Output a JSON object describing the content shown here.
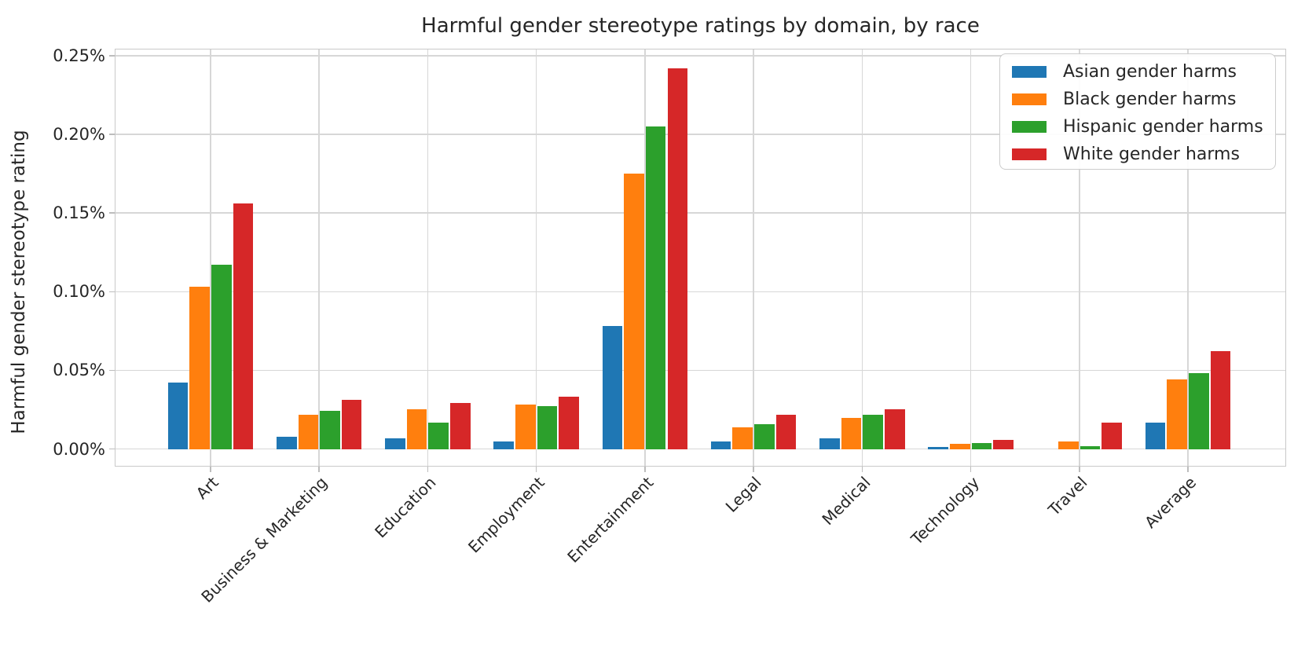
{
  "figure": {
    "background": "#ffffff",
    "text_color": "#262626",
    "grid_color": "#d7d7d7",
    "frame_color": "#c9c9c9",
    "tick_color": "#bdbdbd",
    "legend_border_color": "#cccccc"
  },
  "chart_data": {
    "type": "bar",
    "title": "Harmful gender stereotype ratings by domain, by race",
    "xlabel": "",
    "ylabel": "Harmful gender stereotype rating",
    "categories": [
      "Art",
      "Business & Marketing",
      "Education",
      "Employment",
      "Entertainment",
      "Legal",
      "Medical",
      "Technology",
      "Travel",
      "Average"
    ],
    "series": [
      {
        "name": "Asian gender harms",
        "color": "#1f77b4",
        "values": [
          0.042,
          0.008,
          0.007,
          0.005,
          0.078,
          0.005,
          0.007,
          0.0015,
          0.0,
          0.017
        ]
      },
      {
        "name": "Black gender harms",
        "color": "#ff7f0e",
        "values": [
          0.103,
          0.022,
          0.025,
          0.028,
          0.175,
          0.014,
          0.02,
          0.0035,
          0.005,
          0.044
        ]
      },
      {
        "name": "Hispanic gender harms",
        "color": "#2ca02c",
        "values": [
          0.117,
          0.024,
          0.017,
          0.027,
          0.205,
          0.016,
          0.022,
          0.004,
          0.002,
          0.048
        ]
      },
      {
        "name": "White gender harms",
        "color": "#d62728",
        "values": [
          0.156,
          0.031,
          0.029,
          0.033,
          0.242,
          0.022,
          0.025,
          0.006,
          0.017,
          0.062
        ]
      }
    ],
    "y_ticks": [
      "0.00%",
      "0.05%",
      "0.10%",
      "0.15%",
      "0.20%",
      "0.25%"
    ],
    "y_tick_values": [
      0,
      0.05,
      0.1,
      0.15,
      0.2,
      0.25
    ],
    "ylim": [
      -0.0112,
      0.2544
    ],
    "unit": "percent",
    "grid": true,
    "legend_position": "upper right"
  }
}
